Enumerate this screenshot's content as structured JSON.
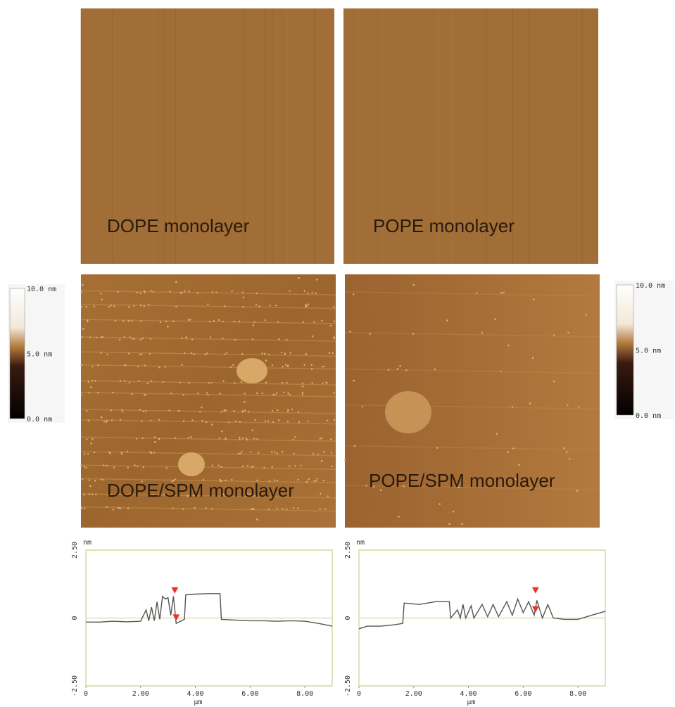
{
  "panels": [
    {
      "label": "DOPE monolayer"
    },
    {
      "label": "POPE monolayer"
    },
    {
      "label": "DOPE/SPM monolayer"
    },
    {
      "label": "POPE/SPM monolayer"
    }
  ],
  "colorbars": [
    {
      "labels": [
        "10.0 nm",
        "5.0 nm",
        "0.0 nm"
      ]
    },
    {
      "labels": [
        "10.0 nm",
        "5.0 nm",
        "0.0 nm"
      ]
    }
  ],
  "chart_data": [
    {
      "type": "line",
      "y_unit": "nm",
      "x_unit": "µm",
      "color": "#555555",
      "marker_color": "#e8342a",
      "x": [
        0,
        0.5,
        1,
        1.5,
        2,
        2.2,
        2.3,
        2.4,
        2.5,
        2.6,
        2.7,
        2.8,
        2.9,
        3.0,
        3.1,
        3.2,
        3.3,
        3.4,
        3.5,
        3.6,
        3.65,
        4.0,
        4.5,
        4.9,
        4.95,
        5.5,
        6,
        6.5,
        7,
        7.5,
        8,
        8.5,
        9
      ],
      "values": [
        -0.15,
        -0.15,
        -0.12,
        -0.14,
        -0.12,
        0.3,
        -0.1,
        0.4,
        -0.1,
        0.6,
        -0.05,
        0.8,
        0.7,
        0.75,
        0.1,
        0.8,
        -0.2,
        -0.15,
        -0.1,
        -0.05,
        0.85,
        0.88,
        0.9,
        0.9,
        -0.05,
        -0.08,
        -0.1,
        -0.1,
        -0.12,
        -0.1,
        -0.12,
        -0.2,
        -0.3
      ],
      "markers": [
        {
          "x": 3.25,
          "y": 0.9
        },
        {
          "x": 3.3,
          "y": -0.1
        }
      ],
      "xlim": [
        0,
        9
      ],
      "ylim": [
        -2.5,
        2.5
      ],
      "xticks": [
        0,
        {
          "value": 2,
          "label": "2.00"
        },
        {
          "value": 4,
          "label": "4.00"
        },
        {
          "value": 6,
          "label": "6.00"
        },
        {
          "value": 8,
          "label": "8.00"
        }
      ],
      "yticks": [
        {
          "value": -2.5,
          "label": "-2.50"
        },
        0,
        {
          "value": 2.5,
          "label": "2.50"
        }
      ]
    },
    {
      "type": "line",
      "y_unit": "nm",
      "x_unit": "µm",
      "color": "#555555",
      "marker_color": "#e8342a",
      "x": [
        0,
        0.3,
        0.8,
        1.3,
        1.6,
        1.65,
        2.2,
        2.8,
        3.3,
        3.35,
        3.6,
        3.7,
        3.8,
        3.9,
        4.1,
        4.2,
        4.5,
        4.7,
        4.9,
        5.1,
        5.4,
        5.6,
        5.8,
        6.0,
        6.2,
        6.4,
        6.5,
        6.7,
        6.9,
        7.1,
        7.5,
        8,
        8.5,
        9
      ],
      "values": [
        -0.4,
        -0.3,
        -0.3,
        -0.25,
        -0.2,
        0.55,
        0.5,
        0.6,
        0.6,
        0.0,
        0.3,
        0.0,
        0.5,
        0.0,
        0.45,
        0.0,
        0.5,
        0.05,
        0.5,
        0.05,
        0.6,
        0.1,
        0.7,
        0.2,
        0.6,
        0.1,
        0.65,
        0.0,
        0.5,
        0.0,
        -0.05,
        -0.05,
        0.1,
        0.25
      ],
      "markers": [
        {
          "x": 6.45,
          "y": 0.9
        },
        {
          "x": 6.45,
          "y": 0.2
        }
      ],
      "xlim": [
        0,
        9
      ],
      "ylim": [
        -2.5,
        2.5
      ],
      "xticks": [
        0,
        {
          "value": 2,
          "label": "2.00"
        },
        {
          "value": 4,
          "label": "4.00"
        },
        {
          "value": 6,
          "label": "6.00"
        },
        {
          "value": 8,
          "label": "8.00"
        }
      ],
      "yticks": [
        {
          "value": -2.5,
          "label": "-2.50"
        },
        0,
        {
          "value": 2.5,
          "label": "2.50"
        }
      ]
    }
  ]
}
